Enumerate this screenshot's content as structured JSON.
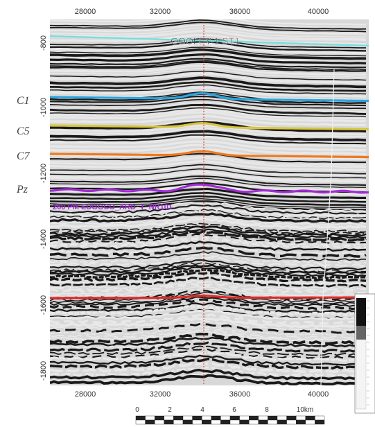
{
  "well": {
    "name": "GOOLEY-1 ST1"
  },
  "axes": {
    "x_top": [
      "28000",
      "32000",
      "36000",
      "40000"
    ],
    "x_bottom": [
      "28000",
      "32000",
      "36000",
      "40000"
    ],
    "y_left": [
      "-800",
      "-1000",
      "-1200",
      "-1400",
      "-1600",
      "-1800"
    ]
  },
  "horizons": [
    {
      "name": "",
      "color": "#6fe0e0"
    },
    {
      "name": "C1",
      "color": "#2aa5e0"
    },
    {
      "name": "C5",
      "color": "#d9c53b"
    },
    {
      "name": "C7",
      "color": "#f07a1e"
    },
    {
      "name": "Pz",
      "color": "#a22bd6"
    },
    {
      "name": "",
      "color": "#e02a2a"
    }
  ],
  "annotations": {
    "pz_horizon_label": "260 PM EUGGCO_ARD_T_NR101"
  },
  "scale_bar": {
    "ticks": [
      "0",
      "2",
      "4",
      "6",
      "8",
      "10km"
    ]
  },
  "colors": {
    "well_line": "#d42a2a",
    "seismic_dark": "#1a1a1a",
    "seismic_light": "#e8e8e8",
    "pz_label": "#a22bd6"
  }
}
